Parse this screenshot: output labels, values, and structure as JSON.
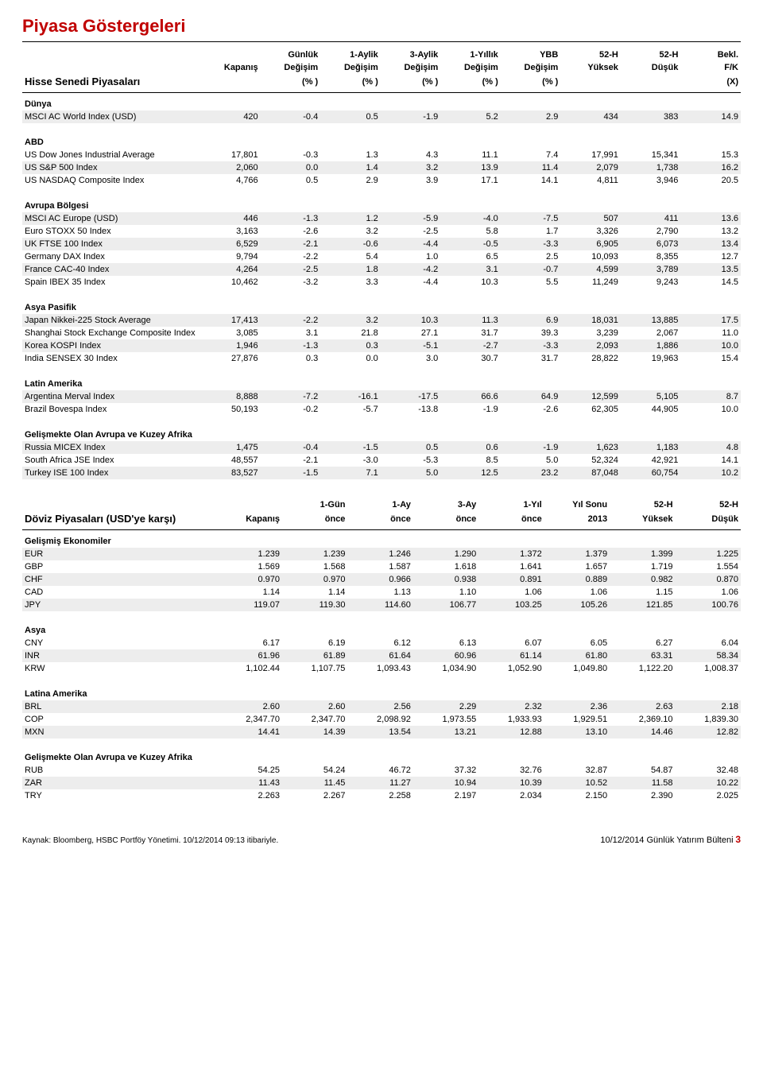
{
  "title": "Piyasa Göstergeleri",
  "equities": {
    "header_top": [
      "",
      "",
      "Günlük",
      "1-Aylik",
      "3-Aylik",
      "1-Yıllık",
      "YBB",
      "52-H",
      "52-H",
      "Bekl."
    ],
    "header_mid": [
      "",
      "Kapanış",
      "Değişim",
      "Değişim",
      "Değişim",
      "Değişim",
      "Değişim",
      "Yüksek",
      "Düşük",
      "F/K"
    ],
    "header_bot": [
      "Hisse Senedi Piyasaları",
      "",
      "(% )",
      "(% )",
      "(% )",
      "(% )",
      "(% )",
      "",
      "",
      "(X)"
    ],
    "sections": [
      {
        "label": "Dünya",
        "rows": [
          [
            "MSCI AC World Index (USD)",
            "420",
            "-0.4",
            "0.5",
            "-1.9",
            "5.2",
            "2.9",
            "434",
            "383",
            "14.9"
          ]
        ]
      },
      {
        "label": "ABD",
        "rows": [
          [
            "US Dow Jones Industrial Average",
            "17,801",
            "-0.3",
            "1.3",
            "4.3",
            "11.1",
            "7.4",
            "17,991",
            "15,341",
            "15.3"
          ],
          [
            "US S&P 500 Index",
            "2,060",
            "0.0",
            "1.4",
            "3.2",
            "13.9",
            "11.4",
            "2,079",
            "1,738",
            "16.2"
          ],
          [
            "US NASDAQ Composite Index",
            "4,766",
            "0.5",
            "2.9",
            "3.9",
            "17.1",
            "14.1",
            "4,811",
            "3,946",
            "20.5"
          ]
        ]
      },
      {
        "label": "Avrupa Bölgesi",
        "rows": [
          [
            "MSCI AC Europe (USD)",
            "446",
            "-1.3",
            "1.2",
            "-5.9",
            "-4.0",
            "-7.5",
            "507",
            "411",
            "13.6"
          ],
          [
            "Euro STOXX 50 Index",
            "3,163",
            "-2.6",
            "3.2",
            "-2.5",
            "5.8",
            "1.7",
            "3,326",
            "2,790",
            "13.2"
          ],
          [
            "UK FTSE 100 Index",
            "6,529",
            "-2.1",
            "-0.6",
            "-4.4",
            "-0.5",
            "-3.3",
            "6,905",
            "6,073",
            "13.4"
          ],
          [
            "Germany DAX Index",
            "9,794",
            "-2.2",
            "5.4",
            "1.0",
            "6.5",
            "2.5",
            "10,093",
            "8,355",
            "12.7"
          ],
          [
            "France CAC-40 Index",
            "4,264",
            "-2.5",
            "1.8",
            "-4.2",
            "3.1",
            "-0.7",
            "4,599",
            "3,789",
            "13.5"
          ],
          [
            "Spain IBEX 35 Index",
            "10,462",
            "-3.2",
            "3.3",
            "-4.4",
            "10.3",
            "5.5",
            "11,249",
            "9,243",
            "14.5"
          ]
        ]
      },
      {
        "label": "Asya Pasifik",
        "rows": [
          [
            "Japan Nikkei-225 Stock Average",
            "17,413",
            "-2.2",
            "3.2",
            "10.3",
            "11.3",
            "6.9",
            "18,031",
            "13,885",
            "17.5"
          ],
          [
            "Shanghai Stock Exchange Composite Index",
            "3,085",
            "3.1",
            "21.8",
            "27.1",
            "31.7",
            "39.3",
            "3,239",
            "2,067",
            "11.0"
          ],
          [
            "Korea KOSPI Index",
            "1,946",
            "-1.3",
            "0.3",
            "-5.1",
            "-2.7",
            "-3.3",
            "2,093",
            "1,886",
            "10.0"
          ],
          [
            "India SENSEX 30 Index",
            "27,876",
            "0.3",
            "0.0",
            "3.0",
            "30.7",
            "31.7",
            "28,822",
            "19,963",
            "15.4"
          ]
        ]
      },
      {
        "label": "Latin Amerika",
        "rows": [
          [
            "Argentina Merval Index",
            "8,888",
            "-7.2",
            "-16.1",
            "-17.5",
            "66.6",
            "64.9",
            "12,599",
            "5,105",
            "8.7"
          ],
          [
            "Brazil Bovespa Index",
            "50,193",
            "-0.2",
            "-5.7",
            "-13.8",
            "-1.9",
            "-2.6",
            "62,305",
            "44,905",
            "10.0"
          ]
        ]
      },
      {
        "label": "Gelişmekte Olan Avrupa ve Kuzey Afrika",
        "rows": [
          [
            "Russia MICEX Index",
            "1,475",
            "-0.4",
            "-1.5",
            "0.5",
            "0.6",
            "-1.9",
            "1,623",
            "1,183",
            "4.8"
          ],
          [
            "South Africa JSE Index",
            "48,557",
            "-2.1",
            "-3.0",
            "-5.3",
            "8.5",
            "5.0",
            "52,324",
            "42,921",
            "14.1"
          ],
          [
            "Turkey ISE 100 Index",
            "83,527",
            "-1.5",
            "7.1",
            "5.0",
            "12.5",
            "23.2",
            "87,048",
            "60,754",
            "10.2"
          ]
        ]
      }
    ]
  },
  "fx": {
    "header_top": [
      "",
      "",
      "1-Gün",
      "1-Ay",
      "3-Ay",
      "1-Yıl",
      "Yıl Sonu",
      "52-H",
      "52-H"
    ],
    "header_bot": [
      "Döviz Piyasaları (USD'ye karşı)",
      "Kapanış",
      "önce",
      "önce",
      "önce",
      "önce",
      "2013",
      "Yüksek",
      "Düşük"
    ],
    "sections": [
      {
        "label": "Gelişmiş Ekonomiler",
        "rows": [
          [
            "EUR",
            "1.239",
            "1.239",
            "1.246",
            "1.290",
            "1.372",
            "1.379",
            "1.399",
            "1.225"
          ],
          [
            "GBP",
            "1.569",
            "1.568",
            "1.587",
            "1.618",
            "1.641",
            "1.657",
            "1.719",
            "1.554"
          ],
          [
            "CHF",
            "0.970",
            "0.970",
            "0.966",
            "0.938",
            "0.891",
            "0.889",
            "0.982",
            "0.870"
          ],
          [
            "CAD",
            "1.14",
            "1.14",
            "1.13",
            "1.10",
            "1.06",
            "1.06",
            "1.15",
            "1.06"
          ],
          [
            "JPY",
            "119.07",
            "119.30",
            "114.60",
            "106.77",
            "103.25",
            "105.26",
            "121.85",
            "100.76"
          ]
        ]
      },
      {
        "label": "Asya",
        "rows": [
          [
            "CNY",
            "6.17",
            "6.19",
            "6.12",
            "6.13",
            "6.07",
            "6.05",
            "6.27",
            "6.04"
          ],
          [
            "INR",
            "61.96",
            "61.89",
            "61.64",
            "60.96",
            "61.14",
            "61.80",
            "63.31",
            "58.34"
          ],
          [
            "KRW",
            "1,102.44",
            "1,107.75",
            "1,093.43",
            "1,034.90",
            "1,052.90",
            "1,049.80",
            "1,122.20",
            "1,008.37"
          ]
        ]
      },
      {
        "label": "Latina Amerika",
        "rows": [
          [
            "BRL",
            "2.60",
            "2.60",
            "2.56",
            "2.29",
            "2.32",
            "2.36",
            "2.63",
            "2.18"
          ],
          [
            "COP",
            "2,347.70",
            "2,347.70",
            "2,098.92",
            "1,973.55",
            "1,933.93",
            "1,929.51",
            "2,369.10",
            "1,839.30"
          ],
          [
            "MXN",
            "14.41",
            "14.39",
            "13.54",
            "13.21",
            "12.88",
            "13.10",
            "14.46",
            "12.82"
          ]
        ]
      },
      {
        "label": "Gelişmekte Olan Avrupa ve Kuzey Afrika",
        "rows": [
          [
            "RUB",
            "54.25",
            "54.24",
            "46.72",
            "37.32",
            "32.76",
            "32.87",
            "54.87",
            "32.48"
          ],
          [
            "ZAR",
            "11.43",
            "11.45",
            "11.27",
            "10.94",
            "10.39",
            "10.52",
            "11.58",
            "10.22"
          ],
          [
            "TRY",
            "2.263",
            "2.267",
            "2.258",
            "2.197",
            "2.034",
            "2.150",
            "2.390",
            "2.025"
          ]
        ]
      }
    ]
  },
  "footer": {
    "source": "Kaynak: Bloomberg, HSBC Portföy Yönetimi. 10/12/2014 09:13 itibariyle.",
    "date": "10/12/2014 Günlük Yatırım Bülteni",
    "page": "3"
  },
  "colors": {
    "accent": "#c00000",
    "zebra": "#ededed"
  }
}
